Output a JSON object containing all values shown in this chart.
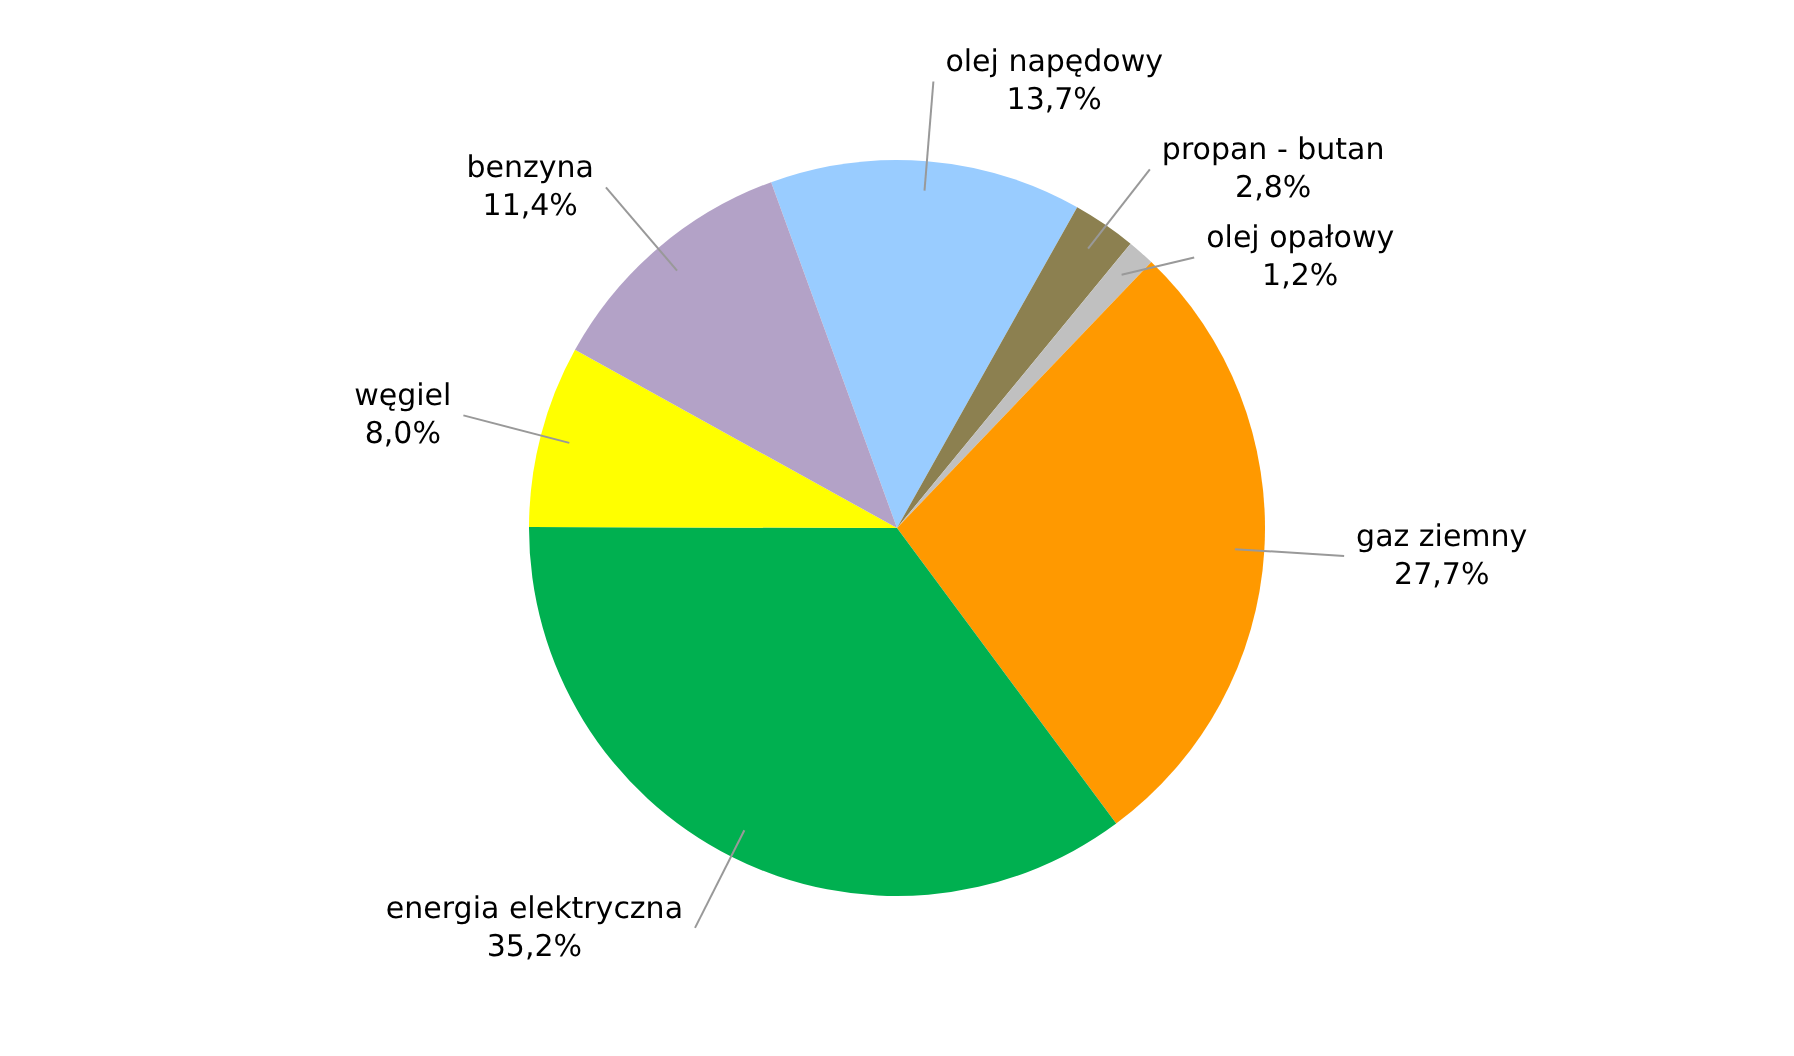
{
  "chart_data": {
    "type": "pie",
    "categories": [
      "olej napędowy",
      "propan - butan",
      "olej opałowy",
      "gaz ziemny",
      "energia elektryczna",
      "węgiel",
      "benzyna"
    ],
    "values": [
      13.7,
      2.8,
      1.2,
      27.7,
      35.2,
      8.0,
      11.4
    ],
    "colors": [
      "#99ccff",
      "#8c8050",
      "#c0c0c0",
      "#ff9900",
      "#00b050",
      "#ffff00",
      "#b3a2c7"
    ],
    "value_labels": [
      "13,7%",
      "2,8%",
      "1,2%",
      "27,7%",
      "35,2%",
      "8,0%",
      "11,4%"
    ],
    "legend": false
  }
}
